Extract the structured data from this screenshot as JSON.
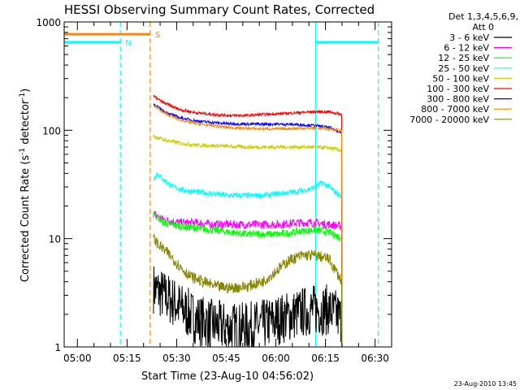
{
  "chart_data": {
    "type": "line",
    "title": "HESSI Observing Summary Count Rates, Corrected",
    "xlabel": "Start Time (23-Aug-10 04:56:02)",
    "ylabel": "Corrected Count Rate (s⁻¹ detector⁻¹)",
    "y_scale": "log",
    "ylim": [
      1,
      1000
    ],
    "x_unit": "minutes after 04:56:02",
    "xlim": [
      0,
      99
    ],
    "xticks": [
      {
        "t": 4,
        "label": "05:00"
      },
      {
        "t": 19,
        "label": "05:15"
      },
      {
        "t": 34,
        "label": "05:30"
      },
      {
        "t": 49,
        "label": "05:45"
      },
      {
        "t": 64,
        "label": "06:00"
      },
      {
        "t": 79,
        "label": "06:15"
      },
      {
        "t": 94,
        "label": "06:30"
      }
    ],
    "yticks": [
      {
        "v": 1,
        "label": "1"
      },
      {
        "v": 10,
        "label": "10"
      },
      {
        "v": 100,
        "label": "100"
      },
      {
        "v": 1000,
        "label": "1000"
      }
    ],
    "legend": {
      "position": "top-right",
      "header": [
        "Det 1,3,4,5,6,9,",
        "Att 0"
      ]
    },
    "series": [
      {
        "name": "3 - 6 keV",
        "color": "#000000",
        "t0": 27,
        "t1": 84,
        "x": [
          27,
          30,
          33,
          36,
          40,
          45,
          50,
          55,
          60,
          65,
          70,
          75,
          80,
          84
        ],
        "y": [
          3.5,
          3.0,
          2.6,
          2.2,
          1.8,
          1.6,
          1.5,
          1.5,
          1.6,
          1.8,
          2.0,
          2.2,
          2.2,
          1.8
        ]
      },
      {
        "name": "6 - 12 keV",
        "color": "#ff00ff",
        "t0": 27,
        "t1": 84,
        "x": [
          27,
          30,
          35,
          40,
          45,
          50,
          55,
          60,
          65,
          70,
          75,
          80,
          84
        ],
        "y": [
          17,
          15,
          14,
          14,
          13.5,
          13.5,
          13.5,
          13.5,
          13.5,
          14,
          14,
          13.5,
          13
        ]
      },
      {
        "name": "12 - 25 keV",
        "color": "#00ff00",
        "t0": 27,
        "t1": 84,
        "x": [
          27,
          30,
          35,
          40,
          45,
          50,
          55,
          60,
          65,
          70,
          75,
          80,
          84
        ],
        "y": [
          17,
          14,
          13,
          12.5,
          12,
          11.5,
          11,
          11,
          11,
          11.5,
          12,
          11.5,
          10
        ]
      },
      {
        "name": "25 - 50 keV",
        "color": "#00ffff",
        "t0": 27,
        "t1": 84,
        "x": [
          27,
          28,
          30,
          33,
          36,
          40,
          45,
          50,
          55,
          60,
          65,
          70,
          75,
          78,
          80,
          84
        ],
        "y": [
          35,
          40,
          35,
          30,
          28,
          27,
          26,
          25,
          25,
          25,
          26,
          27,
          29,
          33,
          30,
          24
        ]
      },
      {
        "name": "50 - 100 keV",
        "color": "#cccc00",
        "t0": 27,
        "t1": 84,
        "x": [
          27,
          30,
          35,
          40,
          45,
          50,
          55,
          60,
          65,
          70,
          75,
          80,
          84
        ],
        "y": [
          88,
          82,
          76,
          73,
          72,
          71,
          70,
          70,
          70,
          70,
          70,
          69,
          65
        ]
      },
      {
        "name": "100 - 300 keV",
        "color": "#ff0000",
        "t0": 27,
        "t1": 84,
        "x": [
          27,
          30,
          35,
          40,
          45,
          50,
          55,
          60,
          65,
          70,
          75,
          80,
          84
        ],
        "y": [
          205,
          180,
          155,
          145,
          140,
          137,
          137,
          140,
          142,
          145,
          148,
          148,
          140
        ]
      },
      {
        "name": "300 - 800 keV",
        "color": "#0000ff",
        "t0": 27,
        "t1": 84,
        "x": [
          27,
          30,
          35,
          40,
          45,
          50,
          55,
          60,
          65,
          70,
          75,
          80,
          84
        ],
        "y": [
          175,
          150,
          130,
          122,
          118,
          115,
          114,
          114,
          114,
          113,
          111,
          106,
          95
        ]
      },
      {
        "name": "800 - 7000 keV",
        "color": "#ff8800",
        "t0": 27,
        "t1": 84,
        "x": [
          27,
          30,
          35,
          40,
          45,
          50,
          55,
          60,
          65,
          70,
          75,
          80,
          84
        ],
        "y": [
          170,
          145,
          125,
          115,
          110,
          106,
          104,
          103,
          103,
          104,
          105,
          103,
          100
        ]
      },
      {
        "name": "7000 - 20000 keV",
        "color": "#888800",
        "t0": 27,
        "t1": 84,
        "x": [
          27,
          29,
          32,
          35,
          38,
          42,
          46,
          50,
          55,
          60,
          64,
          68,
          72,
          76,
          80,
          84
        ],
        "y": [
          10,
          8.5,
          7,
          5.5,
          4.5,
          4,
          3.6,
          3.5,
          3.6,
          4,
          5,
          6.3,
          7,
          7,
          6.5,
          4
        ]
      }
    ],
    "flags": [
      {
        "label": "N",
        "color": "#00ffff",
        "segments": [
          [
            0,
            17,
            650
          ],
          [
            76,
            95,
            650
          ]
        ],
        "dashed_at": [
          17,
          95
        ],
        "solid_at": [
          76
        ]
      },
      {
        "label": "S",
        "color": "#ff8800",
        "segments": [
          [
            0,
            26,
            770
          ]
        ],
        "dashed_at": [
          26
        ]
      }
    ],
    "ylabel_parts": {
      "main": "Corrected Count Rate (s",
      "sup1": "-1",
      "mid": " detector",
      "sup2": "-1",
      "end": ")"
    },
    "timestamp": "23-Aug-2010 13:45"
  }
}
